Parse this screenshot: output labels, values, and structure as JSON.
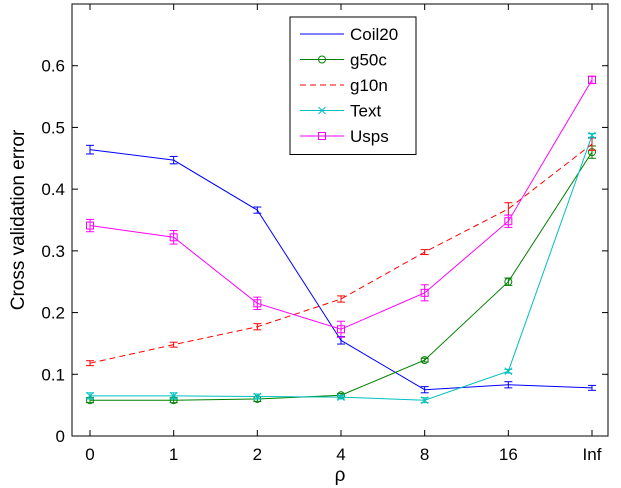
{
  "chart_data": {
    "type": "line",
    "categories": [
      "0",
      "1",
      "2",
      "4",
      "8",
      "16",
      "Inf"
    ],
    "xlabel": "ρ",
    "ylabel": "Cross validation error",
    "ylim": [
      0,
      0.7
    ],
    "yticks": [
      "0",
      "0.1",
      "0.2",
      "0.3",
      "0.4",
      "0.5",
      "0.6"
    ],
    "legend_position": "top-center",
    "grid": false,
    "series": [
      {
        "name": "Coil20",
        "color": "#0000ff",
        "style": "solid",
        "marker": "none",
        "values": [
          0.464,
          0.447,
          0.366,
          0.155,
          0.075,
          0.083,
          0.078
        ],
        "errors": [
          0.007,
          0.006,
          0.005,
          0.006,
          0.005,
          0.005,
          0.004
        ]
      },
      {
        "name": "g50c",
        "color": "#008000",
        "style": "solid",
        "marker": "circle",
        "values": [
          0.058,
          0.058,
          0.06,
          0.066,
          0.123,
          0.25,
          0.46
        ],
        "errors": [
          0.004,
          0.004,
          0.004,
          0.003,
          0.003,
          0.006,
          0.01
        ]
      },
      {
        "name": "g10n",
        "color": "#ff0000",
        "style": "dashed",
        "marker": "none",
        "values": [
          0.118,
          0.148,
          0.177,
          0.222,
          0.298,
          0.368,
          0.473
        ],
        "errors": [
          0.004,
          0.004,
          0.005,
          0.005,
          0.004,
          0.01,
          0.01
        ]
      },
      {
        "name": "Text",
        "color": "#00bfbf",
        "style": "solid",
        "marker": "x",
        "values": [
          0.065,
          0.065,
          0.064,
          0.063,
          0.058,
          0.105,
          0.487
        ],
        "errors": [
          0.005,
          0.005,
          0.004,
          0.003,
          0.004,
          0.003,
          0.003
        ]
      },
      {
        "name": "Usps",
        "color": "#ff00ff",
        "style": "solid",
        "marker": "square",
        "values": [
          0.341,
          0.322,
          0.215,
          0.173,
          0.232,
          0.348,
          0.577
        ],
        "errors": [
          0.01,
          0.011,
          0.01,
          0.013,
          0.013,
          0.01,
          0.006
        ]
      }
    ]
  }
}
